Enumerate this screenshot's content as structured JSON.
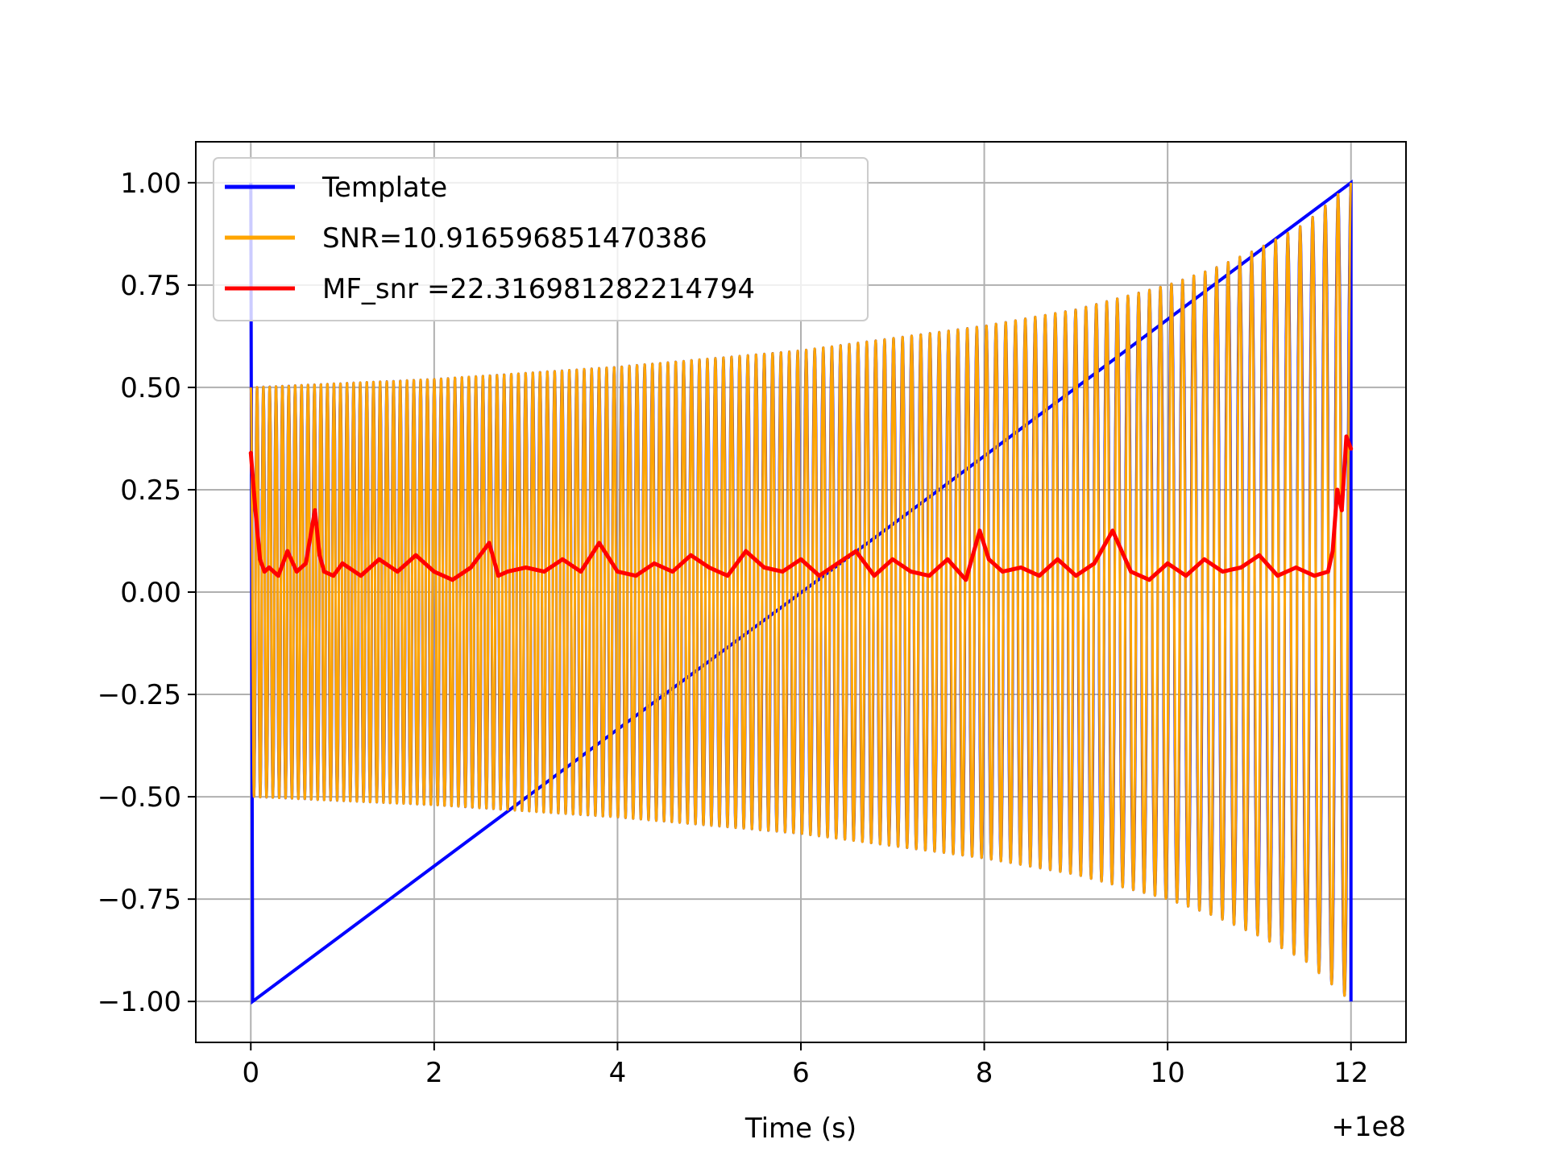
{
  "chart_data": {
    "type": "line",
    "title": "",
    "xlabel": "Time (s)",
    "ylabel": "",
    "x_offset_text": "+1e8",
    "xlim": [
      -0.6,
      12.6
    ],
    "ylim": [
      -1.1,
      1.1
    ],
    "grid": true,
    "legend_position": "upper-left",
    "x_ticks": [
      0,
      2,
      4,
      6,
      8,
      10,
      12
    ],
    "x_tick_labels": [
      "0",
      "2",
      "4",
      "6",
      "8",
      "10",
      "12"
    ],
    "y_ticks": [
      1.0,
      0.75,
      0.5,
      0.25,
      0.0,
      -0.25,
      -0.5,
      -0.75,
      -1.0
    ],
    "y_tick_labels": [
      "1.00",
      "0.75",
      "0.50",
      "0.25",
      "0.00",
      "−0.25",
      "−0.50",
      "−0.75",
      "−1.00"
    ],
    "series": [
      {
        "name": "Template",
        "color": "#0000ff",
        "kind": "chirp",
        "t_start": 0.0,
        "t_end": 12.0,
        "envelope": [
          [
            0.0,
            0.5
          ],
          [
            2.0,
            0.52
          ],
          [
            4.0,
            0.55
          ],
          [
            6.0,
            0.59
          ],
          [
            8.0,
            0.65
          ],
          [
            9.0,
            0.69
          ],
          [
            10.0,
            0.75
          ],
          [
            10.5,
            0.79
          ],
          [
            11.0,
            0.84
          ],
          [
            11.5,
            0.9
          ],
          [
            12.0,
            1.0
          ]
        ],
        "cycles": 130,
        "edge_spikes": [
          [
            0.0,
            1.0
          ],
          [
            0.02,
            -1.0
          ],
          [
            12.0,
            1.0
          ],
          [
            12.0,
            -1.0
          ]
        ]
      },
      {
        "name": "SNR=10.916596851470386",
        "color": "#ffa500",
        "kind": "chirp",
        "t_start": 0.0,
        "t_end": 12.0,
        "envelope": [
          [
            0.0,
            0.5
          ],
          [
            2.0,
            0.52
          ],
          [
            4.0,
            0.55
          ],
          [
            6.0,
            0.59
          ],
          [
            8.0,
            0.65
          ],
          [
            9.0,
            0.69
          ],
          [
            10.0,
            0.75
          ],
          [
            10.5,
            0.79
          ],
          [
            11.0,
            0.84
          ],
          [
            11.5,
            0.9
          ],
          [
            12.0,
            1.0
          ]
        ],
        "cycles": 130
      },
      {
        "name": "MF_snr =22.316981282214794",
        "color": "#ff0000",
        "kind": "line",
        "x": [
          0.0,
          0.05,
          0.1,
          0.15,
          0.2,
          0.3,
          0.4,
          0.5,
          0.6,
          0.7,
          0.75,
          0.8,
          0.9,
          1.0,
          1.2,
          1.4,
          1.6,
          1.8,
          2.0,
          2.2,
          2.4,
          2.6,
          2.7,
          2.8,
          3.0,
          3.2,
          3.4,
          3.6,
          3.8,
          4.0,
          4.2,
          4.4,
          4.6,
          4.8,
          5.0,
          5.2,
          5.4,
          5.6,
          5.8,
          6.0,
          6.2,
          6.4,
          6.6,
          6.8,
          7.0,
          7.2,
          7.4,
          7.6,
          7.8,
          7.95,
          8.05,
          8.2,
          8.4,
          8.6,
          8.8,
          9.0,
          9.2,
          9.4,
          9.6,
          9.8,
          10.0,
          10.2,
          10.4,
          10.6,
          10.8,
          11.0,
          11.2,
          11.4,
          11.6,
          11.75,
          11.8,
          11.85,
          11.9,
          11.95,
          12.0
        ],
        "y": [
          0.34,
          0.2,
          0.08,
          0.05,
          0.06,
          0.04,
          0.1,
          0.05,
          0.07,
          0.2,
          0.09,
          0.05,
          0.04,
          0.07,
          0.04,
          0.08,
          0.05,
          0.09,
          0.05,
          0.03,
          0.06,
          0.12,
          0.04,
          0.05,
          0.06,
          0.05,
          0.08,
          0.05,
          0.12,
          0.05,
          0.04,
          0.07,
          0.05,
          0.09,
          0.06,
          0.04,
          0.1,
          0.06,
          0.05,
          0.08,
          0.04,
          0.07,
          0.1,
          0.04,
          0.08,
          0.05,
          0.04,
          0.08,
          0.03,
          0.15,
          0.08,
          0.05,
          0.06,
          0.04,
          0.08,
          0.04,
          0.07,
          0.15,
          0.05,
          0.03,
          0.07,
          0.04,
          0.08,
          0.05,
          0.06,
          0.09,
          0.04,
          0.06,
          0.04,
          0.05,
          0.1,
          0.25,
          0.2,
          0.38,
          0.35
        ]
      }
    ]
  }
}
